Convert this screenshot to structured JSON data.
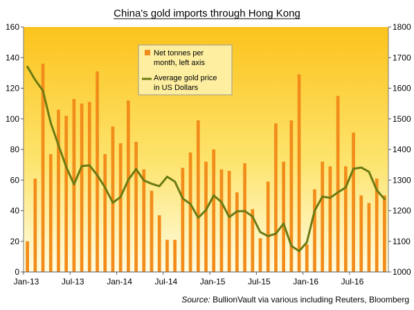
{
  "chart_data": {
    "type": "bar",
    "title": "China's gold imports through  Hong Kong",
    "source_prefix": "Source:",
    "source_text": " BullionVault via various including Reuters, Bloomberg",
    "x_tick_labels": [
      "Jan-13",
      "Jul-13",
      "Jan-14",
      "Jul-14",
      "Jan-15",
      "Jul-15",
      "Jan-16",
      "Jul-16"
    ],
    "y_left": {
      "min": 0,
      "max": 160,
      "ticks": [
        0,
        20,
        40,
        60,
        80,
        100,
        120,
        140,
        160
      ]
    },
    "y_right": {
      "min": 1000,
      "max": 1800,
      "ticks": [
        1000,
        1100,
        1200,
        1300,
        1400,
        1500,
        1600,
        1700,
        1800
      ]
    },
    "categories": [
      "Jan-13",
      "Feb-13",
      "Mar-13",
      "Apr-13",
      "May-13",
      "Jun-13",
      "Jul-13",
      "Aug-13",
      "Sep-13",
      "Oct-13",
      "Nov-13",
      "Dec-13",
      "Jan-14",
      "Feb-14",
      "Mar-14",
      "Apr-14",
      "May-14",
      "Jun-14",
      "Jul-14",
      "Aug-14",
      "Sep-14",
      "Oct-14",
      "Nov-14",
      "Dec-14",
      "Jan-15",
      "Feb-15",
      "Mar-15",
      "Apr-15",
      "May-15",
      "Jun-15",
      "Jul-15",
      "Aug-15",
      "Sep-15",
      "Oct-15",
      "Nov-15",
      "Dec-15",
      "Jan-16",
      "Feb-16",
      "Mar-16",
      "Apr-16",
      "May-16",
      "Jun-16",
      "Jul-16",
      "Aug-16",
      "Sep-16",
      "Oct-16",
      "Nov-16"
    ],
    "series": [
      {
        "name": "Net tonnes per month, left axis",
        "axis": "left",
        "kind": "bar",
        "color": "#f28c1a",
        "values": [
          20,
          61,
          136,
          77,
          106,
          102,
          113,
          110,
          111,
          131,
          77,
          95,
          84,
          112,
          85,
          67,
          53,
          37,
          21,
          21,
          68,
          78,
          99,
          72,
          80,
          67,
          66,
          52,
          71,
          41,
          22,
          59,
          97,
          72,
          99,
          129,
          18,
          54,
          72,
          69,
          115,
          69,
          91,
          50,
          45,
          61,
          50
        ]
      },
      {
        "name": "Average gold price in US Dollars",
        "axis": "right",
        "kind": "line",
        "color": "#6b7a12",
        "values": [
          1670,
          1627,
          1592,
          1487,
          1414,
          1343,
          1286,
          1346,
          1348,
          1316,
          1276,
          1226,
          1245,
          1301,
          1336,
          1299,
          1288,
          1280,
          1311,
          1295,
          1240,
          1222,
          1177,
          1202,
          1250,
          1228,
          1179,
          1198,
          1199,
          1181,
          1130,
          1117,
          1125,
          1158,
          1085,
          1068,
          1097,
          1200,
          1246,
          1242,
          1260,
          1276,
          1337,
          1341,
          1327,
          1267,
          1238
        ]
      }
    ],
    "legend_position": "top-center",
    "grid": false
  }
}
